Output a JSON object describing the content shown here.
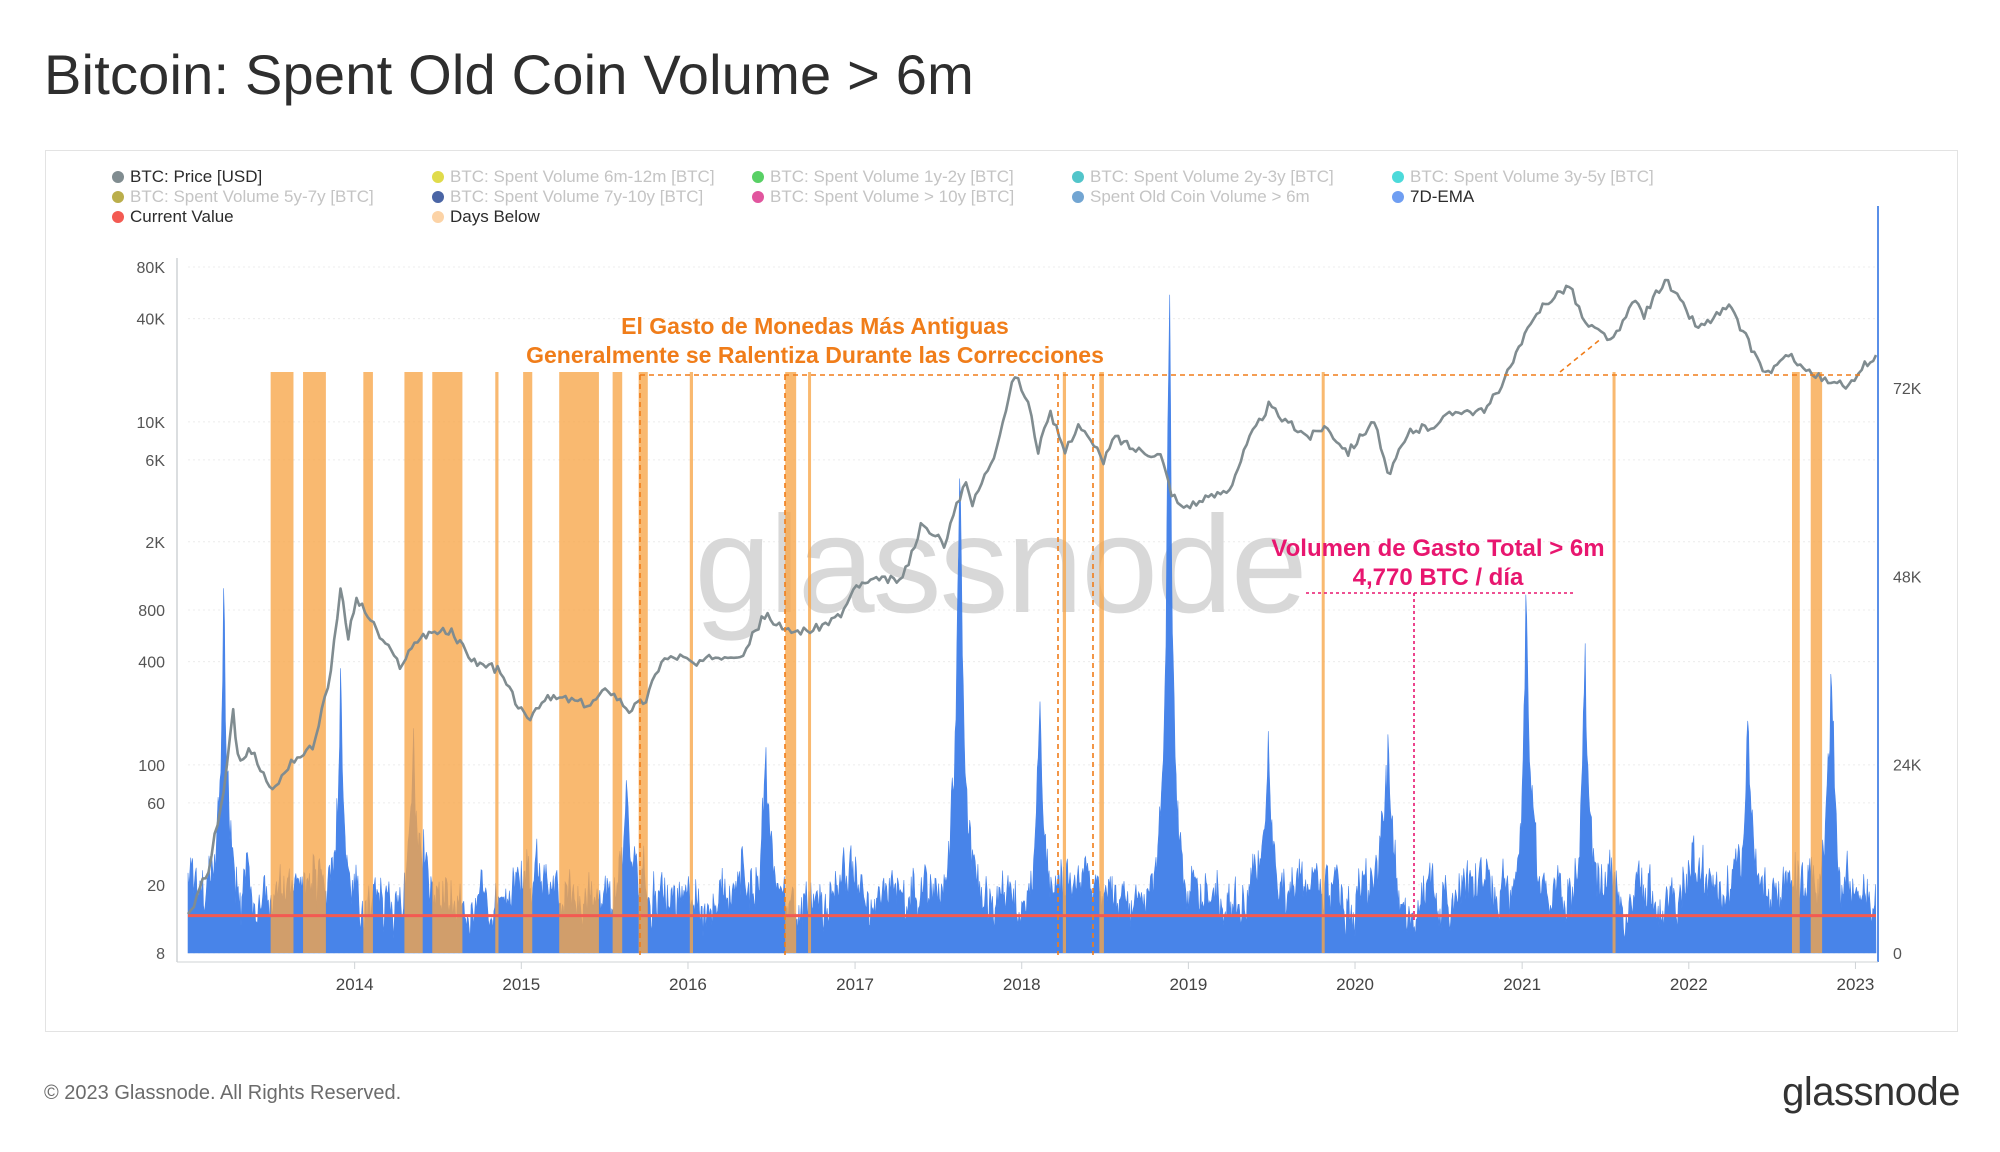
{
  "title": "Bitcoin: Spent Old Coin Volume > 6m",
  "legend": [
    {
      "label": "BTC: Price [USD]",
      "color": "#808c90",
      "active": true
    },
    {
      "label": "BTC: Spent Volume 6m-12m [BTC]",
      "color": "#d8d21e",
      "active": false
    },
    {
      "label": "BTC: Spent Volume 1y-2y [BTC]",
      "color": "#2ec43e",
      "active": false
    },
    {
      "label": "BTC: Spent Volume 2y-3y [BTC]",
      "color": "#27b7bd",
      "active": false
    },
    {
      "label": "BTC: Spent Volume 3y-5y [BTC]",
      "color": "#1fd1d1",
      "active": false
    },
    {
      "label": "BTC: Spent Volume 5y-7y [BTC]",
      "color": "#a99a1e",
      "active": false
    },
    {
      "label": "BTC: Spent Volume 7y-10y [BTC]",
      "color": "#1d3f8f",
      "active": false
    },
    {
      "label": "BTC: Spent Volume > 10y [BTC]",
      "color": "#d92b86",
      "active": false
    },
    {
      "label": "Spent Old Coin Volume > 6m",
      "color": "#4f8fc7",
      "active": false
    },
    {
      "label": "7D-EMA",
      "color": "#6f9ef2",
      "active": true
    },
    {
      "label": "Current Value",
      "color": "#f35a52",
      "active": true
    },
    {
      "label": "Days Below",
      "color": "#fcd3a6",
      "active": true
    }
  ],
  "annotations": {
    "orange_line1": "El Gasto de Monedas Más Antiguas",
    "orange_line2": "Generalmente se Ralentiza Durante las Correcciones",
    "pink_line1": "Volumen de Gasto Total > 6m",
    "pink_line2": "4,770 BTC / día"
  },
  "watermark": "glassnode",
  "footer": {
    "copyright": "© 2023 Glassnode. All Rights Reserved.",
    "logo": "glassnode"
  },
  "colors": {
    "price": "#808c90",
    "volume": "#3f7ee8",
    "current_value": "#f35a52",
    "days_below": "#f7a548",
    "orange_annotation": "#f07d1a",
    "pink_annotation": "#e8166f"
  },
  "chart_data": {
    "type": "area",
    "x_range": [
      "2013-01-01",
      "2023-02-15"
    ],
    "x_ticks": [
      "2014",
      "2015",
      "2016",
      "2017",
      "2018",
      "2019",
      "2020",
      "2021",
      "2022",
      "2023"
    ],
    "y_left": {
      "label": "",
      "scale": "log",
      "ticks": [
        "8",
        "20",
        "60",
        "100",
        "400",
        "800",
        "2K",
        "6K",
        "10K",
        "40K",
        "80K"
      ],
      "tick_values": [
        8,
        20,
        60,
        100,
        400,
        800,
        2000,
        6000,
        10000,
        40000,
        80000
      ]
    },
    "y_right": {
      "label": "",
      "scale": "linear",
      "range": [
        0,
        90000
      ],
      "ticks": [
        "0",
        "24K",
        "48K",
        "72K"
      ],
      "tick_values": [
        0,
        24000,
        48000,
        72000
      ]
    },
    "current_value": 4770,
    "series": [
      {
        "name": "BTC: Price [USD]",
        "axis": "left",
        "points": [
          [
            "2013-01-01",
            13
          ],
          [
            "2013-02-15",
            25
          ],
          [
            "2013-03-20",
            70
          ],
          [
            "2013-04-10",
            200
          ],
          [
            "2013-04-20",
            110
          ],
          [
            "2013-05-20",
            120
          ],
          [
            "2013-07-05",
            70
          ],
          [
            "2013-08-15",
            105
          ],
          [
            "2013-10-01",
            125
          ],
          [
            "2013-11-10",
            350
          ],
          [
            "2013-12-01",
            1050
          ],
          [
            "2013-12-18",
            560
          ],
          [
            "2014-01-05",
            930
          ],
          [
            "2014-02-05",
            700
          ],
          [
            "2014-02-25",
            560
          ],
          [
            "2014-04-10",
            380
          ],
          [
            "2014-05-25",
            560
          ],
          [
            "2014-06-25",
            600
          ],
          [
            "2014-08-01",
            590
          ],
          [
            "2014-09-20",
            400
          ],
          [
            "2014-11-10",
            360
          ],
          [
            "2015-01-14",
            180
          ],
          [
            "2015-02-15",
            240
          ],
          [
            "2015-04-01",
            245
          ],
          [
            "2015-06-01",
            225
          ],
          [
            "2015-07-10",
            280
          ],
          [
            "2015-08-25",
            210
          ],
          [
            "2015-10-01",
            240
          ],
          [
            "2015-11-04",
            410
          ],
          [
            "2015-12-15",
            430
          ],
          [
            "2016-01-20",
            380
          ],
          [
            "2016-03-01",
            430
          ],
          [
            "2016-05-01",
            450
          ],
          [
            "2016-06-17",
            750
          ],
          [
            "2016-08-01",
            600
          ],
          [
            "2016-10-01",
            615
          ],
          [
            "2016-12-01",
            750
          ],
          [
            "2017-01-04",
            1100
          ],
          [
            "2017-03-01",
            1200
          ],
          [
            "2017-04-15",
            1200
          ],
          [
            "2017-05-25",
            2500
          ],
          [
            "2017-07-15",
            1950
          ],
          [
            "2017-09-01",
            4700
          ],
          [
            "2017-09-15",
            3300
          ],
          [
            "2017-11-01",
            6500
          ],
          [
            "2017-12-17",
            19000
          ],
          [
            "2018-01-15",
            13000
          ],
          [
            "2018-02-06",
            6900
          ],
          [
            "2018-03-05",
            11000
          ],
          [
            "2018-04-06",
            6700
          ],
          [
            "2018-05-05",
            9800
          ],
          [
            "2018-06-29",
            5900
          ],
          [
            "2018-07-25",
            8200
          ],
          [
            "2018-09-01",
            7000
          ],
          [
            "2018-11-01",
            6400
          ],
          [
            "2018-11-25",
            3900
          ],
          [
            "2018-12-15",
            3200
          ],
          [
            "2019-02-01",
            3450
          ],
          [
            "2019-04-01",
            4100
          ],
          [
            "2019-05-15",
            8000
          ],
          [
            "2019-06-26",
            12500
          ],
          [
            "2019-08-01",
            10000
          ],
          [
            "2019-09-25",
            8200
          ],
          [
            "2019-10-26",
            9500
          ],
          [
            "2019-12-17",
            6700
          ],
          [
            "2020-02-12",
            10300
          ],
          [
            "2020-03-12",
            4900
          ],
          [
            "2020-05-01",
            8800
          ],
          [
            "2020-06-15",
            9400
          ],
          [
            "2020-08-15",
            11800
          ],
          [
            "2020-10-10",
            11300
          ],
          [
            "2020-11-30",
            19000
          ],
          [
            "2020-12-31",
            29000
          ],
          [
            "2021-02-15",
            48000
          ],
          [
            "2021-04-14",
            63000
          ],
          [
            "2021-05-20",
            37000
          ],
          [
            "2021-07-20",
            30000
          ],
          [
            "2021-09-06",
            51000
          ],
          [
            "2021-09-25",
            42000
          ],
          [
            "2021-11-10",
            68000
          ],
          [
            "2022-01-22",
            35000
          ],
          [
            "2022-03-30",
            47000
          ],
          [
            "2022-05-12",
            29000
          ],
          [
            "2022-06-18",
            19000
          ],
          [
            "2022-08-14",
            24500
          ],
          [
            "2022-09-15",
            20000
          ],
          [
            "2022-11-09",
            16500
          ],
          [
            "2022-12-30",
            16500
          ],
          [
            "2023-01-15",
            21000
          ],
          [
            "2023-02-15",
            24500
          ]
        ]
      },
      {
        "name": "7D-EMA",
        "axis": "right",
        "baseline": 4200,
        "spikes": [
          [
            "2013-03-20",
            42000
          ],
          [
            "2013-12-01",
            32000
          ],
          [
            "2014-05-10",
            22000
          ],
          [
            "2015-08-20",
            16000
          ],
          [
            "2016-06-20",
            20000
          ],
          [
            "2017-08-18",
            62000
          ],
          [
            "2018-02-10",
            26000
          ],
          [
            "2018-11-20",
            88000
          ],
          [
            "2019-06-25",
            22000
          ],
          [
            "2020-03-13",
            20000
          ],
          [
            "2021-01-10",
            45000
          ],
          [
            "2021-05-19",
            32000
          ],
          [
            "2022-05-10",
            26000
          ],
          [
            "2022-11-10",
            34000
          ]
        ]
      }
    ],
    "days_below_periods": [
      [
        "2013-07-01",
        "2013-08-20"
      ],
      [
        "2013-09-10",
        "2013-10-30"
      ],
      [
        "2014-01-20",
        "2014-02-10"
      ],
      [
        "2014-04-20",
        "2014-05-30"
      ],
      [
        "2014-06-20",
        "2014-08-25"
      ],
      [
        "2014-11-05",
        "2014-11-12"
      ],
      [
        "2015-01-05",
        "2015-01-25"
      ],
      [
        "2015-03-25",
        "2015-06-20"
      ],
      [
        "2015-07-20",
        "2015-08-10"
      ],
      [
        "2015-09-15",
        "2015-10-05"
      ],
      [
        "2016-01-05",
        "2016-01-12"
      ],
      [
        "2016-08-01",
        "2016-08-25"
      ],
      [
        "2016-09-20",
        "2016-09-26"
      ],
      [
        "2018-04-01",
        "2018-04-08"
      ],
      [
        "2018-06-20",
        "2018-06-30"
      ],
      [
        "2019-10-20",
        "2019-10-24"
      ],
      [
        "2021-07-18",
        "2021-07-24"
      ],
      [
        "2022-08-15",
        "2022-09-01"
      ],
      [
        "2022-09-25",
        "2022-10-20"
      ]
    ]
  }
}
